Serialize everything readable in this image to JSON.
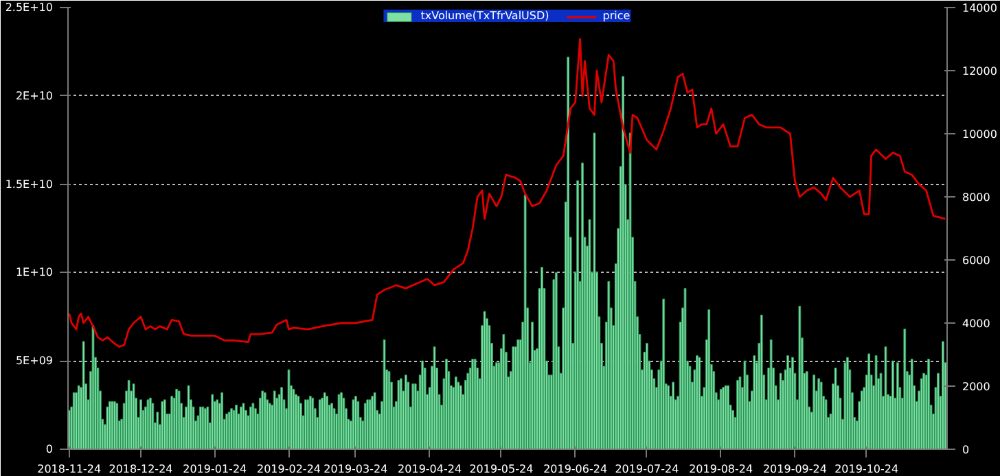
{
  "chart_data": {
    "type": "bar",
    "legend": "top",
    "grid": "y",
    "xlim": [
      "2018-11-23T12:00",
      "2019-11-26T18:00"
    ],
    "xticks": [
      "2018-11-24",
      "2018-12-24",
      "2019-01-24",
      "2019-02-24",
      "2019-03-24",
      "2019-04-24",
      "2019-05-24",
      "2019-06-24",
      "2019-07-24",
      "2019-08-24",
      "2019-09-24",
      "2019-10-24"
    ],
    "ylim": [
      0,
      25000000000.0
    ],
    "yticks": [
      0,
      {
        "value": 5000000000.0,
        "label": "5E+09"
      },
      {
        "value": 10000000000.0,
        "label": "1E+10"
      },
      {
        "value": 15000000000.0,
        "label": "1.5E+10"
      },
      {
        "value": 20000000000.0,
        "label": "2E+10"
      },
      {
        "value": 25000000000.0,
        "label": "2.5E+10"
      }
    ],
    "y2lim": [
      0,
      14000
    ],
    "y2ticks": [
      0,
      2000,
      4000,
      6000,
      8000,
      10000,
      12000,
      14000
    ],
    "series": [
      {
        "name": "txVolume(TxTfrValUSD)",
        "color": "#7fe0a4",
        "x": [
          "2018-11-24",
          "2018-11-25",
          "2018-11-26",
          "2018-11-27",
          "2018-11-28",
          "2018-11-29",
          "2018-11-30",
          "2018-12-01",
          "2018-12-02",
          "2018-12-03",
          "2018-12-04",
          "2018-12-05",
          "2018-12-06",
          "2018-12-07",
          "2018-12-08",
          "2018-12-09",
          "2018-12-10",
          "2018-12-11",
          "2018-12-12",
          "2018-12-13",
          "2018-12-14",
          "2018-12-15",
          "2018-12-16",
          "2018-12-17",
          "2018-12-18",
          "2018-12-19",
          "2018-12-20",
          "2018-12-21",
          "2018-12-22",
          "2018-12-23",
          "2018-12-24",
          "2018-12-25",
          "2018-12-26",
          "2018-12-27",
          "2018-12-28",
          "2018-12-29",
          "2018-12-30",
          "2018-12-31",
          "2019-01-01",
          "2019-01-02",
          "2019-01-03",
          "2019-01-04",
          "2019-01-05",
          "2019-01-06",
          "2019-01-07",
          "2019-01-08",
          "2019-01-09",
          "2019-01-10",
          "2019-01-11",
          "2019-01-12",
          "2019-01-13",
          "2019-01-14",
          "2019-01-15",
          "2019-01-16",
          "2019-01-17",
          "2019-01-18",
          "2019-01-19",
          "2019-01-20",
          "2019-01-21",
          "2019-01-22",
          "2019-01-23",
          "2019-01-24",
          "2019-01-25",
          "2019-01-26",
          "2019-01-27",
          "2019-01-28",
          "2019-01-29",
          "2019-01-30",
          "2019-01-31",
          "2019-02-01",
          "2019-02-02",
          "2019-02-03",
          "2019-02-04",
          "2019-02-05",
          "2019-02-06",
          "2019-02-07",
          "2019-02-08",
          "2019-02-09",
          "2019-02-10",
          "2019-02-11",
          "2019-02-12",
          "2019-02-13",
          "2019-02-14",
          "2019-02-15",
          "2019-02-16",
          "2019-02-17",
          "2019-02-18",
          "2019-02-19",
          "2019-02-20",
          "2019-02-21",
          "2019-02-22",
          "2019-02-23",
          "2019-02-24",
          "2019-02-25",
          "2019-02-26",
          "2019-02-27",
          "2019-02-28",
          "2019-03-01",
          "2019-03-02",
          "2019-03-03",
          "2019-03-04",
          "2019-03-05",
          "2019-03-06",
          "2019-03-07",
          "2019-03-08",
          "2019-03-09",
          "2019-03-10",
          "2019-03-11",
          "2019-03-12",
          "2019-03-13",
          "2019-03-14",
          "2019-03-15",
          "2019-03-16",
          "2019-03-17",
          "2019-03-18",
          "2019-03-19",
          "2019-03-20",
          "2019-03-21",
          "2019-03-22",
          "2019-03-23",
          "2019-03-24",
          "2019-03-25",
          "2019-03-26",
          "2019-03-27",
          "2019-03-28",
          "2019-03-29",
          "2019-03-30",
          "2019-03-31",
          "2019-04-01",
          "2019-04-02",
          "2019-04-03",
          "2019-04-04",
          "2019-04-05",
          "2019-04-06",
          "2019-04-07",
          "2019-04-08",
          "2019-04-09",
          "2019-04-10",
          "2019-04-11",
          "2019-04-12",
          "2019-04-13",
          "2019-04-14",
          "2019-04-15",
          "2019-04-16",
          "2019-04-17",
          "2019-04-18",
          "2019-04-19",
          "2019-04-20",
          "2019-04-21",
          "2019-04-22",
          "2019-04-23",
          "2019-04-24",
          "2019-04-25",
          "2019-04-26",
          "2019-04-27",
          "2019-04-28",
          "2019-04-29",
          "2019-04-30",
          "2019-05-01",
          "2019-05-02",
          "2019-05-03",
          "2019-05-04",
          "2019-05-05",
          "2019-05-06",
          "2019-05-07",
          "2019-05-08",
          "2019-05-09",
          "2019-05-10",
          "2019-05-11",
          "2019-05-12",
          "2019-05-13",
          "2019-05-14",
          "2019-05-15",
          "2019-05-16",
          "2019-05-17",
          "2019-05-18",
          "2019-05-19",
          "2019-05-20",
          "2019-05-21",
          "2019-05-22",
          "2019-05-23",
          "2019-05-24",
          "2019-05-25",
          "2019-05-26",
          "2019-05-27",
          "2019-05-28",
          "2019-05-29",
          "2019-05-30",
          "2019-05-31",
          "2019-06-01",
          "2019-06-02",
          "2019-06-03",
          "2019-06-04",
          "2019-06-05",
          "2019-06-06",
          "2019-06-07",
          "2019-06-08",
          "2019-06-09",
          "2019-06-10",
          "2019-06-11",
          "2019-06-12",
          "2019-06-13",
          "2019-06-14",
          "2019-06-15",
          "2019-06-16",
          "2019-06-17",
          "2019-06-18",
          "2019-06-19",
          "2019-06-20",
          "2019-06-21",
          "2019-06-22",
          "2019-06-23",
          "2019-06-24",
          "2019-06-25",
          "2019-06-26",
          "2019-06-27",
          "2019-06-28",
          "2019-06-29",
          "2019-06-30",
          "2019-07-01",
          "2019-07-02",
          "2019-07-03",
          "2019-07-04",
          "2019-07-05",
          "2019-07-06",
          "2019-07-07",
          "2019-07-08",
          "2019-07-09",
          "2019-07-10",
          "2019-07-11",
          "2019-07-12",
          "2019-07-13",
          "2019-07-14",
          "2019-07-15",
          "2019-07-16",
          "2019-07-17",
          "2019-07-18",
          "2019-07-19",
          "2019-07-20",
          "2019-07-21",
          "2019-07-22",
          "2019-07-23",
          "2019-07-24",
          "2019-07-25",
          "2019-07-26",
          "2019-07-27",
          "2019-07-28",
          "2019-07-29",
          "2019-07-30",
          "2019-07-31",
          "2019-08-01",
          "2019-08-02",
          "2019-08-03",
          "2019-08-04",
          "2019-08-05",
          "2019-08-06",
          "2019-08-07",
          "2019-08-08",
          "2019-08-09",
          "2019-08-10",
          "2019-08-11",
          "2019-08-12",
          "2019-08-13",
          "2019-08-14",
          "2019-08-15",
          "2019-08-16",
          "2019-08-17",
          "2019-08-18",
          "2019-08-19",
          "2019-08-20",
          "2019-08-21",
          "2019-08-22",
          "2019-08-23",
          "2019-08-24",
          "2019-08-25",
          "2019-08-26",
          "2019-08-27",
          "2019-08-28",
          "2019-08-29",
          "2019-08-30",
          "2019-08-31",
          "2019-09-01",
          "2019-09-02",
          "2019-09-03",
          "2019-09-04",
          "2019-09-05",
          "2019-09-06",
          "2019-09-07",
          "2019-09-08",
          "2019-09-09",
          "2019-09-10",
          "2019-09-11",
          "2019-09-12",
          "2019-09-13",
          "2019-09-14",
          "2019-09-15",
          "2019-09-16",
          "2019-09-17",
          "2019-09-18",
          "2019-09-19",
          "2019-09-20",
          "2019-09-21",
          "2019-09-22",
          "2019-09-23",
          "2019-09-24",
          "2019-09-25",
          "2019-09-26",
          "2019-09-27",
          "2019-09-28",
          "2019-09-29",
          "2019-09-30",
          "2019-10-01",
          "2019-10-02",
          "2019-10-03",
          "2019-10-04",
          "2019-10-05",
          "2019-10-06",
          "2019-10-07",
          "2019-10-08",
          "2019-10-09",
          "2019-10-10",
          "2019-10-11",
          "2019-10-12",
          "2019-10-13",
          "2019-10-14",
          "2019-10-15",
          "2019-10-16",
          "2019-10-17",
          "2019-10-18",
          "2019-10-19",
          "2019-10-20",
          "2019-10-21",
          "2019-10-22",
          "2019-10-23",
          "2019-10-24",
          "2019-10-25",
          "2019-10-26",
          "2019-10-27",
          "2019-10-28",
          "2019-10-29",
          "2019-10-30",
          "2019-10-31",
          "2019-11-01",
          "2019-11-02",
          "2019-11-03",
          "2019-11-04",
          "2019-11-05",
          "2019-11-06",
          "2019-11-07",
          "2019-11-08",
          "2019-11-09",
          "2019-11-10",
          "2019-11-11",
          "2019-11-12",
          "2019-11-13",
          "2019-11-14",
          "2019-11-15",
          "2019-11-16",
          "2019-11-17",
          "2019-11-18",
          "2019-11-19",
          "2019-11-20",
          "2019-11-21",
          "2019-11-22",
          "2019-11-23",
          "2019-11-24",
          "2019-11-25",
          "2019-11-26"
        ],
        "values": [
          2200000000.0,
          2400000000.0,
          3200000000.0,
          3200000000.0,
          3600000000.0,
          3500000000.0,
          6100000000.0,
          3700000000.0,
          2800000000.0,
          4400000000.0,
          7000000000.0,
          5200000000.0,
          4600000000.0,
          3300000000.0,
          1700000000.0,
          1400000000.0,
          2400000000.0,
          2700000000.0,
          2700000000.0,
          2700000000.0,
          2600000000.0,
          1600000000.0,
          1700000000.0,
          2600000000.0,
          3300000000.0,
          3900000000.0,
          3300000000.0,
          3700000000.0,
          2900000000.0,
          1800000000.0,
          2800000000.0,
          2200000000.0,
          2400000000.0,
          2800000000.0,
          2900000000.0,
          2600000000.0,
          1500000000.0,
          2100000000.0,
          1400000000.0,
          2700000000.0,
          2800000000.0,
          2000000000.0,
          2000000000.0,
          3000000000.0,
          2900000000.0,
          3400000000.0,
          3300000000.0,
          2600000000.0,
          1800000000.0,
          2400000000.0,
          3600000000.0,
          2800000000.0,
          2400000000.0,
          1600000000.0,
          1900000000.0,
          2400000000.0,
          2400000000.0,
          2300000000.0,
          2400000000.0,
          1500000000.0,
          3100000000.0,
          2700000000.0,
          2800000000.0,
          2600000000.0,
          3200000000.0,
          1700000000.0,
          2000000000.0,
          2100000000.0,
          2300000000.0,
          2200000000.0,
          2500000000.0,
          2000000000.0,
          2400000000.0,
          2600000000.0,
          2200000000.0,
          1900000000.0,
          2400000000.0,
          2600000000.0,
          2300000000.0,
          2000000000.0,
          2900000000.0,
          3300000000.0,
          3200000000.0,
          2800000000.0,
          2600000000.0,
          2500000000.0,
          3300000000.0,
          2900000000.0,
          3100000000.0,
          3500000000.0,
          2800000000.0,
          2300000000.0,
          4500000000.0,
          3600000000.0,
          3400000000.0,
          3100000000.0,
          3000000000.0,
          2600000000.0,
          1900000000.0,
          2800000000.0,
          2800000000.0,
          3000000000.0,
          2900000000.0,
          2300000000.0,
          1800000000.0,
          2800000000.0,
          2900000000.0,
          3200000000.0,
          3000000000.0,
          2500000000.0,
          2600000000.0,
          2300000000.0,
          2000000000.0,
          3100000000.0,
          3200000000.0,
          2900000000.0,
          2300000000.0,
          1700000000.0,
          1600000000.0,
          2800000000.0,
          3000000000.0,
          2700000000.0,
          1800000000.0,
          1600000000.0,
          2600000000.0,
          2800000000.0,
          2800000000.0,
          3000000000.0,
          3200000000.0,
          2200000000.0,
          2000000000.0,
          2700000000.0,
          6200000000.0,
          4500000000.0,
          4400000000.0,
          3800000000.0,
          2400000000.0,
          2700000000.0,
          3900000000.0,
          4000000000.0,
          3300000000.0,
          4200000000.0,
          3800000000.0,
          2400000000.0,
          3700000000.0,
          3700000000.0,
          3300000000.0,
          4200000000.0,
          5000000000.0,
          4600000000.0,
          3100000000.0,
          3500000000.0,
          4700000000.0,
          5800000000.0,
          4600000000.0,
          3100000000.0,
          2500000000.0,
          4000000000.0,
          5100000000.0,
          4400000000.0,
          3600000000.0,
          3500000000.0,
          4100000000.0,
          3800000000.0,
          3600000000.0,
          3100000000.0,
          3900000000.0,
          4300000000.0,
          4600000000.0,
          5100000000.0,
          5100000000.0,
          4600000000.0,
          4000000000.0,
          7000000000.0,
          7800000000.0,
          7400000000.0,
          7000000000.0,
          6000000000.0,
          4700000000.0,
          4900000000.0,
          4900000000.0,
          5700000000.0,
          6500000000.0,
          5500000000.0,
          4100000000.0,
          4400000000.0,
          5800000000.0,
          5800000000.0,
          6200000000.0,
          6200000000.0,
          7200000000.0,
          14400000000.0,
          8000000000.0,
          4900000000.0,
          7200000000.0,
          5600000000.0,
          5700000000.0,
          9100000000.0,
          10300000000.0,
          9100000000.0,
          5000000000.0,
          4200000000.0,
          4200000000.0,
          9600000000.0,
          10000000000.0,
          5800000000.0,
          4300000000.0,
          8000000000.0,
          14000000000.0,
          22200000000.0,
          12000000000.0,
          6000000000.0,
          10000000000.0,
          15200000000.0,
          9500000000.0,
          16200000000.0,
          12000000000.0,
          11500000000.0,
          13000000000.0,
          10000000000.0,
          17900000000.0,
          10000000000.0,
          7500000000.0,
          6000000000.0,
          4700000000.0,
          7200000000.0,
          9500000000.0,
          8000000000.0,
          7000000000.0,
          10500000000.0,
          12500000000.0,
          16000000000.0,
          21100000000.0,
          15000000000.0,
          13000000000.0,
          17900000000.0,
          12000000000.0,
          9500000000.0,
          7500000000.0,
          6500000000.0,
          4500000000.0,
          5500000000.0,
          6000000000.0,
          5000000000.0,
          4500000000.0,
          4000000000.0,
          3500000000.0,
          4500000000.0,
          5000000000.0,
          8500000000.0,
          3700000000.0,
          3600000000.0,
          3000000000.0,
          3800000000.0,
          2800000000.0,
          3000000000.0,
          7200000000.0,
          8000000000.0,
          9100000000.0,
          5000000000.0,
          4700000000.0,
          3800000000.0,
          4500000000.0,
          5300000000.0,
          5200000000.0,
          3000000000.0,
          3500000000.0,
          6200000000.0,
          7900000000.0,
          4800000000.0,
          4400000000.0,
          3200000000.0,
          2800000000.0,
          3400000000.0,
          3500000000.0,
          3600000000.0,
          3600000000.0,
          2500000000.0,
          2200000000.0,
          1800000000.0,
          3900000000.0,
          4100000000.0,
          3500000000.0,
          5000000000.0,
          4200000000.0,
          2700000000.0,
          3300000000.0,
          5300000000.0,
          4900000000.0,
          6000000000.0,
          7600000000.0,
          4200000000.0,
          2800000000.0,
          4600000000.0,
          6200000000.0,
          4600000000.0,
          3600000000.0,
          2800000000.0,
          4300000000.0,
          3900000000.0,
          4500000000.0,
          5300000000.0,
          4600000000.0,
          5200000000.0,
          4300000000.0,
          2800000000.0,
          8100000000.0,
          6300000000.0,
          4300000000.0,
          4400000000.0,
          2400000000.0,
          2100000000.0,
          4200000000.0,
          3300000000.0,
          4000000000.0,
          3800000000.0,
          3000000000.0,
          2800000000.0,
          1800000000.0,
          2000000000.0,
          3700000000.0,
          4600000000.0,
          3600000000.0,
          2900000000.0,
          1700000000.0,
          4900000000.0,
          5200000000.0,
          4500000000.0,
          3200000000.0,
          1800000000.0,
          1600000000.0,
          2700000000.0,
          3300000000.0,
          3500000000.0,
          4200000000.0,
          5400000000.0,
          4200000000.0,
          3600000000.0,
          5300000000.0,
          4000000000.0,
          4300000000.0,
          3000000000.0,
          5800000000.0,
          3100000000.0,
          3000000000.0,
          5000000000.0,
          2900000000.0,
          4900000000.0,
          3500000000.0,
          2900000000.0,
          6800000000.0,
          4400000000.0,
          4200000000.0,
          5100000000.0,
          3600000000.0,
          2700000000.0,
          3300000000.0,
          4000000000.0,
          4300000000.0,
          4200000000.0,
          5100000000.0,
          2500000000.0,
          2000000000.0,
          3500000000.0,
          4300000000.0,
          3000000000.0,
          6100000000.0,
          4900000000.0
        ]
      },
      {
        "name": "price",
        "type": "line",
        "axis": "y2",
        "color": "#e00000",
        "x": [
          "2018-11-24",
          "2018-11-25",
          "2018-11-26",
          "2018-11-27",
          "2018-11-28",
          "2018-11-29",
          "2018-11-30",
          "2018-12-02",
          "2018-12-04",
          "2018-12-06",
          "2018-12-08",
          "2018-12-10",
          "2018-12-13",
          "2018-12-15",
          "2018-12-17",
          "2018-12-19",
          "2018-12-21",
          "2018-12-24",
          "2018-12-26",
          "2018-12-28",
          "2018-12-30",
          "2019-01-01",
          "2019-01-04",
          "2019-01-06",
          "2019-01-09",
          "2019-01-11",
          "2019-01-14",
          "2019-01-20",
          "2019-01-24",
          "2019-01-28",
          "2019-02-01",
          "2019-02-07",
          "2019-02-08",
          "2019-02-12",
          "2019-02-17",
          "2019-02-19",
          "2019-02-23",
          "2019-02-24",
          "2019-02-26",
          "2019-03-04",
          "2019-03-10",
          "2019-03-18",
          "2019-03-24",
          "2019-03-31",
          "2019-04-02",
          "2019-04-05",
          "2019-04-10",
          "2019-04-14",
          "2019-04-20",
          "2019-04-23",
          "2019-04-26",
          "2019-04-30",
          "2019-05-04",
          "2019-05-08",
          "2019-05-10",
          "2019-05-12",
          "2019-05-14",
          "2019-05-16",
          "2019-05-17",
          "2019-05-19",
          "2019-05-22",
          "2019-05-24",
          "2019-05-26",
          "2019-05-30",
          "2019-06-01",
          "2019-06-03",
          "2019-06-06",
          "2019-06-09",
          "2019-06-12",
          "2019-06-16",
          "2019-06-19",
          "2019-06-22",
          "2019-06-24",
          "2019-06-26",
          "2019-06-27",
          "2019-06-28",
          "2019-06-30",
          "2019-07-02",
          "2019-07-03",
          "2019-07-05",
          "2019-07-08",
          "2019-07-10",
          "2019-07-11",
          "2019-07-14",
          "2019-07-17",
          "2019-07-18",
          "2019-07-20",
          "2019-07-24",
          "2019-07-28",
          "2019-07-31",
          "2019-08-03",
          "2019-08-06",
          "2019-08-08",
          "2019-08-10",
          "2019-08-12",
          "2019-08-14",
          "2019-08-16",
          "2019-08-18",
          "2019-08-20",
          "2019-08-22",
          "2019-08-25",
          "2019-08-28",
          "2019-08-31",
          "2019-09-03",
          "2019-09-06",
          "2019-09-09",
          "2019-09-12",
          "2019-09-16",
          "2019-09-18",
          "2019-09-22",
          "2019-09-24",
          "2019-09-26",
          "2019-09-29",
          "2019-10-02",
          "2019-10-05",
          "2019-10-07",
          "2019-10-10",
          "2019-10-13",
          "2019-10-17",
          "2019-10-21",
          "2019-10-23",
          "2019-10-25",
          "2019-10-26",
          "2019-10-28",
          "2019-11-01",
          "2019-11-04",
          "2019-11-07",
          "2019-11-09",
          "2019-11-12",
          "2019-11-15",
          "2019-11-18",
          "2019-11-21",
          "2019-11-26"
        ],
        "values": [
          4300,
          4000,
          3900,
          3800,
          4200,
          4300,
          4000,
          4200,
          3900,
          3550,
          3450,
          3550,
          3350,
          3250,
          3300,
          3800,
          4000,
          4200,
          3800,
          3900,
          3800,
          3900,
          3800,
          4100,
          4050,
          3650,
          3600,
          3600,
          3600,
          3450,
          3450,
          3400,
          3650,
          3650,
          3700,
          3950,
          4100,
          3800,
          3850,
          3800,
          3900,
          4000,
          4000,
          4100,
          4900,
          5050,
          5200,
          5100,
          5300,
          5400,
          5200,
          5300,
          5700,
          5900,
          6300,
          7000,
          8000,
          8200,
          7300,
          8100,
          7700,
          8000,
          8700,
          8600,
          8500,
          8100,
          7700,
          7800,
          8200,
          9000,
          9300,
          10800,
          11000,
          13000,
          11200,
          12300,
          10800,
          10600,
          12000,
          11000,
          12500,
          12300,
          11400,
          10200,
          9400,
          10600,
          10500,
          9800,
          9500,
          10100,
          10800,
          11800,
          11900,
          11300,
          11400,
          10200,
          10300,
          10300,
          10800,
          10000,
          10300,
          9600,
          9600,
          10500,
          10600,
          10300,
          10200,
          10200,
          10200,
          10000,
          8500,
          8000,
          8200,
          8300,
          8100,
          7900,
          8600,
          8300,
          8000,
          8200,
          7450,
          7450,
          9300,
          9500,
          9200,
          9400,
          9300,
          8800,
          8700,
          8400,
          8200,
          7400,
          7300
        ]
      }
    ]
  }
}
